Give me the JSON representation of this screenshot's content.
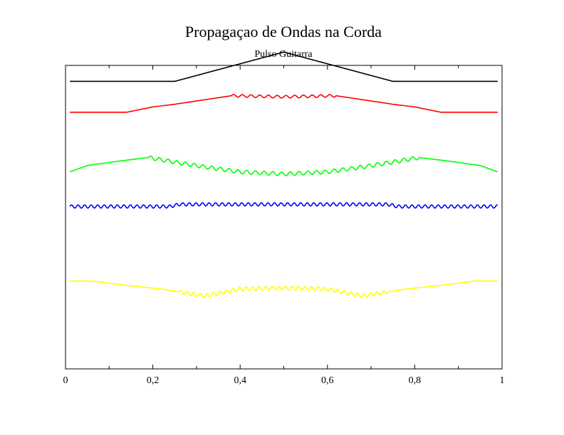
{
  "chart_data": {
    "type": "line",
    "title": "Propagaçao de Ondas na Corda",
    "subtitle": "Pulso Guitarra",
    "xlabel": "",
    "ylabel": "",
    "xlim": [
      0,
      1
    ],
    "ylim": [
      -5.4,
      0.3
    ],
    "x_ticks": [
      0,
      0.2,
      0.4,
      0.6,
      0.8,
      1
    ],
    "x_tick_labels": [
      "0",
      "0,2",
      "0,4",
      "0,6",
      "0,8",
      "1"
    ],
    "grid": false,
    "legend": "none",
    "series": [
      {
        "color": "#000000",
        "points": [
          [
            0.01,
            0
          ],
          [
            0.25,
            0
          ],
          [
            0.5,
            0.55
          ],
          [
            0.75,
            0
          ],
          [
            0.99,
            0
          ]
        ],
        "ripple": {
          "amplitude": 0,
          "period": 0.02,
          "from": 0,
          "to": 0
        }
      },
      {
        "color": "#ff0000",
        "points": [
          [
            0.01,
            -0.58
          ],
          [
            0.14,
            -0.58
          ],
          [
            0.2,
            -0.48
          ],
          [
            0.25,
            -0.43
          ],
          [
            0.38,
            -0.27
          ],
          [
            0.5,
            -0.29
          ],
          [
            0.62,
            -0.27
          ],
          [
            0.75,
            -0.43
          ],
          [
            0.8,
            -0.48
          ],
          [
            0.86,
            -0.58
          ],
          [
            0.99,
            -0.58
          ]
        ],
        "ripple": {
          "amplitude": 0.025,
          "period": 0.02,
          "from": 0.38,
          "to": 0.62
        }
      },
      {
        "color": "#00ff00",
        "points": [
          [
            0.01,
            -1.7
          ],
          [
            0.05,
            -1.58
          ],
          [
            0.12,
            -1.5
          ],
          [
            0.19,
            -1.43
          ],
          [
            0.26,
            -1.53
          ],
          [
            0.33,
            -1.62
          ],
          [
            0.4,
            -1.7
          ],
          [
            0.5,
            -1.74
          ],
          [
            0.6,
            -1.7
          ],
          [
            0.67,
            -1.62
          ],
          [
            0.74,
            -1.53
          ],
          [
            0.81,
            -1.43
          ],
          [
            0.88,
            -1.5
          ],
          [
            0.95,
            -1.58
          ],
          [
            0.99,
            -1.7
          ]
        ],
        "ripple": {
          "amplitude": 0.035,
          "period": 0.02,
          "from": 0.19,
          "to": 0.81
        }
      },
      {
        "color": "#0000ff",
        "points": [
          [
            0.01,
            -2.35
          ],
          [
            0.24,
            -2.35
          ],
          [
            0.26,
            -2.31
          ],
          [
            0.5,
            -2.31
          ],
          [
            0.74,
            -2.31
          ],
          [
            0.76,
            -2.35
          ],
          [
            0.99,
            -2.35
          ]
        ],
        "ripple": {
          "amplitude": 0.03,
          "period": 0.015,
          "from": 0.01,
          "to": 0.99
        }
      },
      {
        "color": "#ffff00",
        "points": [
          [
            0.01,
            -3.75
          ],
          [
            0.06,
            -3.75
          ],
          [
            0.14,
            -3.83
          ],
          [
            0.22,
            -3.9
          ],
          [
            0.32,
            -4.03
          ],
          [
            0.4,
            -3.9
          ],
          [
            0.5,
            -3.88
          ],
          [
            0.6,
            -3.9
          ],
          [
            0.68,
            -4.03
          ],
          [
            0.78,
            -3.9
          ],
          [
            0.86,
            -3.83
          ],
          [
            0.94,
            -3.75
          ],
          [
            0.99,
            -3.75
          ]
        ],
        "ripple": {
          "amplitude": 0.035,
          "period": 0.015,
          "from": 0.26,
          "to": 0.74
        }
      }
    ]
  }
}
